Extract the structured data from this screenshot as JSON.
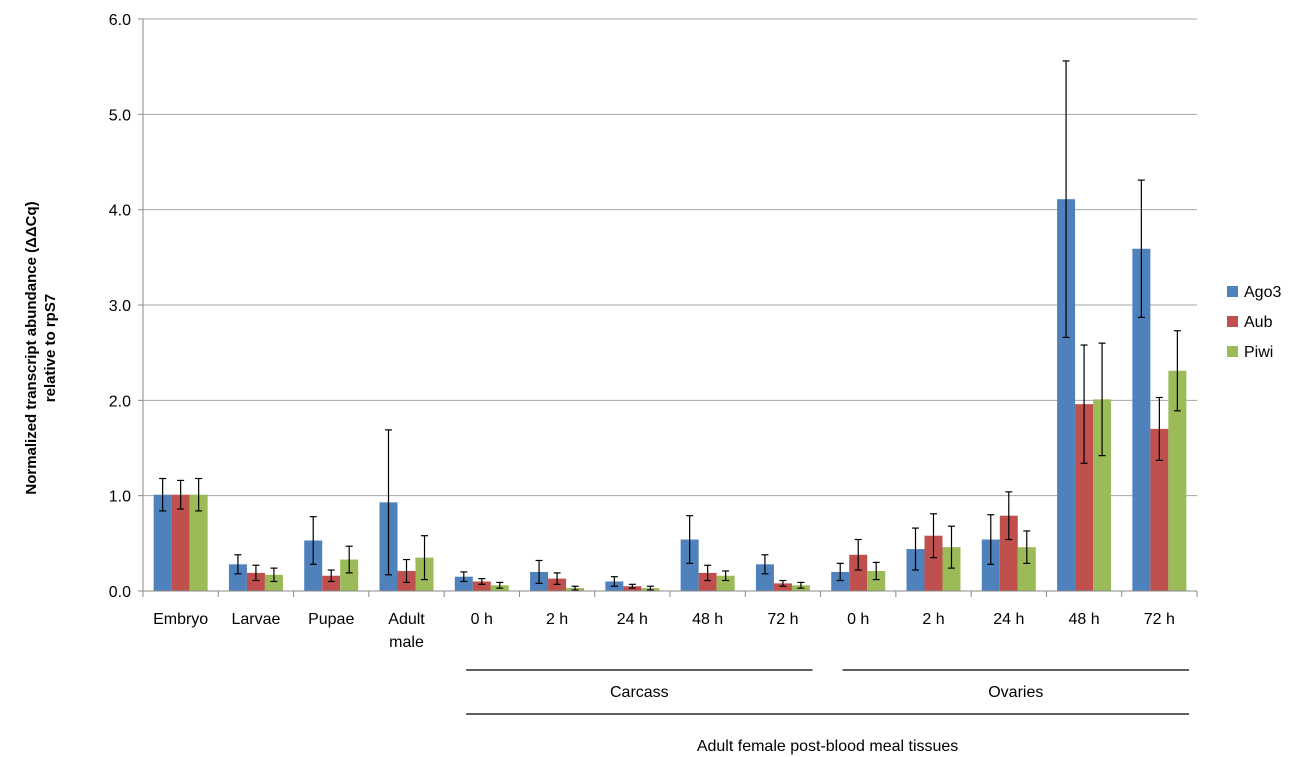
{
  "chart_data": {
    "type": "bar",
    "ylabel_line1": "Normalized transcript abundance (ΔΔCq)",
    "ylabel_line2": "relative to rpS7",
    "ylim": [
      0,
      6
    ],
    "yticks": [
      "0.0",
      "1.0",
      "2.0",
      "3.0",
      "4.0",
      "5.0",
      "6.0"
    ],
    "grid": true,
    "legend_position": "right",
    "categories": [
      "Embryo",
      "Larvae",
      "Pupae",
      "Adult male",
      "0 h",
      "2 h",
      "24 h",
      "48 h",
      "72 h",
      "0 h",
      "2 h",
      "24 h",
      "48 h",
      "72 h"
    ],
    "category_labels": [
      [
        "Embryo"
      ],
      [
        "Larvae"
      ],
      [
        "Pupae"
      ],
      [
        "Adult",
        "male"
      ],
      [
        "0 h"
      ],
      [
        "2 h"
      ],
      [
        "24 h"
      ],
      [
        "48 h"
      ],
      [
        "72 h"
      ],
      [
        "0 h"
      ],
      [
        "2 h"
      ],
      [
        "24 h"
      ],
      [
        "48 h"
      ],
      [
        "72 h"
      ]
    ],
    "groups": [
      {
        "label": "Carcass",
        "from": 4,
        "to": 8
      },
      {
        "label": "Ovaries",
        "from": 9,
        "to": 13
      }
    ],
    "super_group": {
      "label": "Adult female post-blood meal tissues",
      "from": 4,
      "to": 13
    },
    "series": [
      {
        "name": "Ago3",
        "color": "#4f81bd",
        "values": [
          1.01,
          0.28,
          0.53,
          0.93,
          0.15,
          0.2,
          0.1,
          0.54,
          0.28,
          0.2,
          0.44,
          0.54,
          4.11,
          3.59
        ],
        "errors": [
          0.17,
          0.1,
          0.25,
          0.76,
          0.05,
          0.12,
          0.05,
          0.25,
          0.1,
          0.09,
          0.22,
          0.26,
          1.45,
          0.72
        ]
      },
      {
        "name": "Aub",
        "color": "#c0504d",
        "values": [
          1.01,
          0.19,
          0.16,
          0.21,
          0.1,
          0.13,
          0.05,
          0.19,
          0.08,
          0.38,
          0.58,
          0.79,
          1.96,
          1.7
        ],
        "errors": [
          0.15,
          0.08,
          0.06,
          0.12,
          0.03,
          0.06,
          0.02,
          0.08,
          0.03,
          0.16,
          0.23,
          0.25,
          0.62,
          0.33
        ]
      },
      {
        "name": "Piwi",
        "color": "#9bbb59",
        "values": [
          1.01,
          0.17,
          0.33,
          0.35,
          0.06,
          0.03,
          0.03,
          0.16,
          0.06,
          0.21,
          0.46,
          0.46,
          2.01,
          2.31
        ],
        "errors": [
          0.17,
          0.07,
          0.14,
          0.23,
          0.03,
          0.02,
          0.02,
          0.05,
          0.03,
          0.09,
          0.22,
          0.17,
          0.59,
          0.42
        ]
      }
    ]
  }
}
